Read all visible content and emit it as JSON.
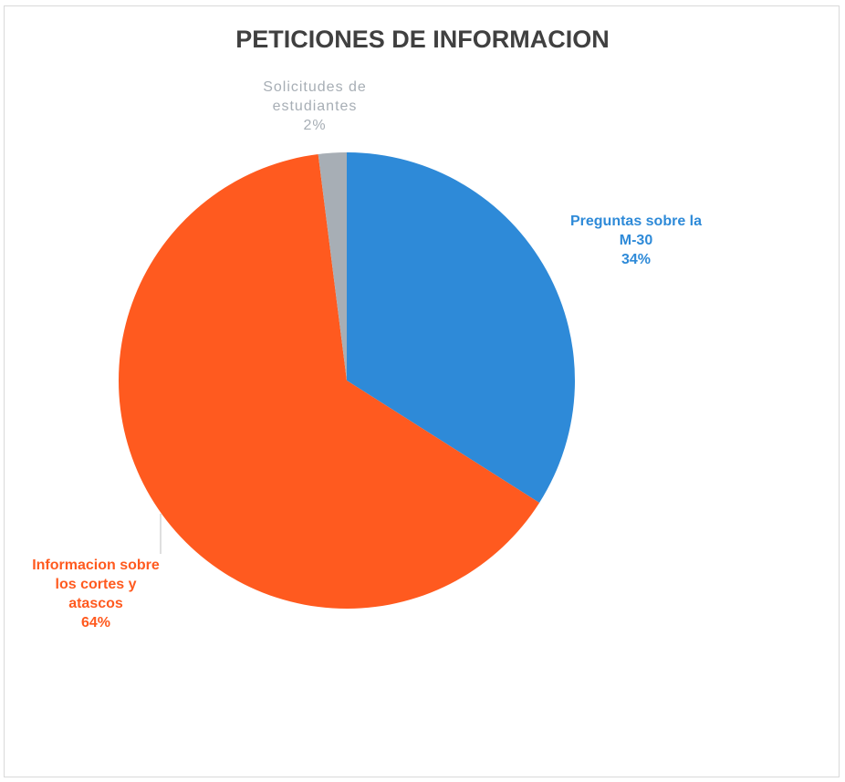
{
  "chart_data": {
    "type": "pie",
    "title": "PETICIONES DE INFORMACION",
    "categories": [
      "Preguntas sobre la M-30",
      "Informacion sobre los cortes y atascos",
      "Solicitudes de estudiantes"
    ],
    "values": [
      34,
      64,
      2
    ],
    "value_labels": [
      "34%",
      "64%",
      "2%"
    ],
    "colors": [
      "#2e8ad8",
      "#ff5a1f",
      "#a7aeb5"
    ]
  }
}
